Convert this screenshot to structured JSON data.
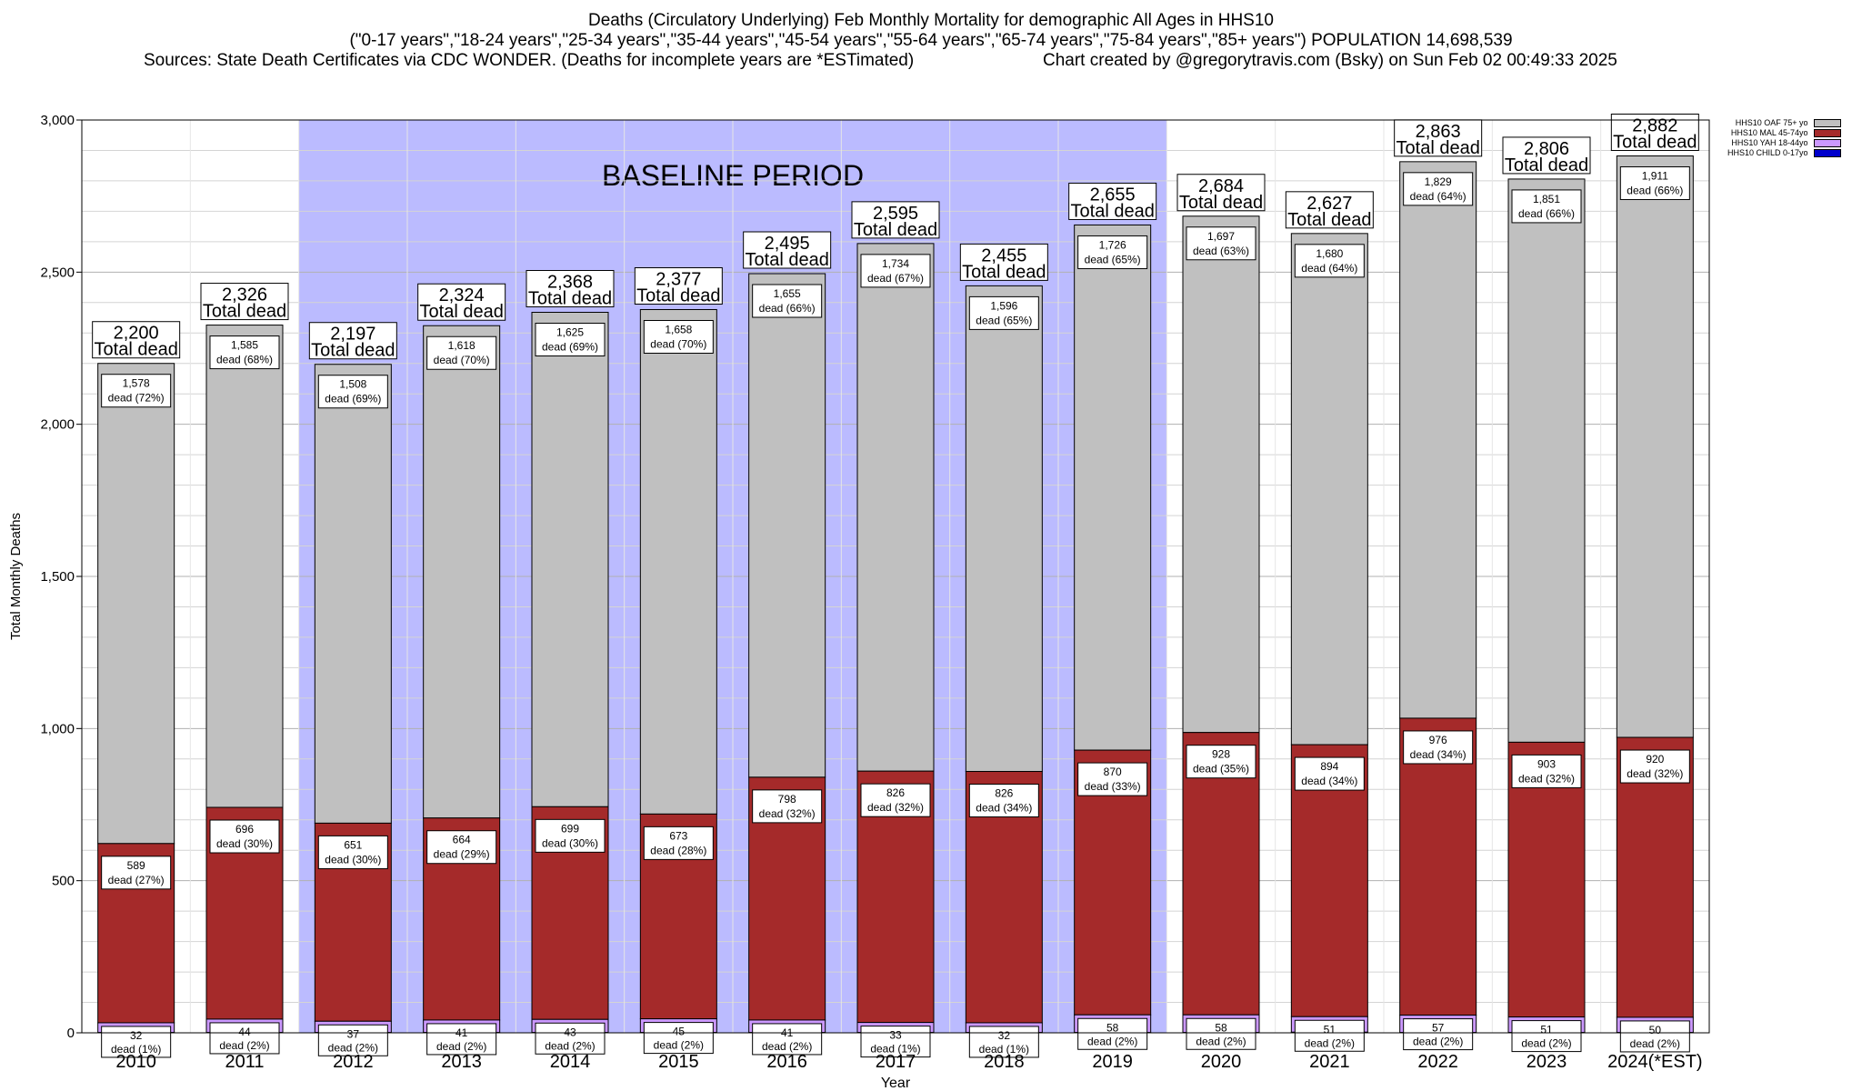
{
  "title": {
    "line1": "Deaths (Circulatory Underlying) Feb Monthly Mortality for demographic All Ages in HHS10",
    "line2": "(\"0-17 years\",\"18-24 years\",\"25-34 years\",\"35-44 years\",\"45-54 years\",\"55-64 years\",\"65-74 years\",\"75-84 years\",\"85+ years\") POPULATION 14,698,539",
    "line3_left": "Sources: State Death Certificates via CDC WONDER. (Deaths for incomplete years are *ESTimated)",
    "line3_right": "Chart created by @gregorytravis.com (Bsky) on Sun Feb 02 00:49:33 2025"
  },
  "chart_data": {
    "type": "bar",
    "stacked": true,
    "xlabel": "Year",
    "ylabel": "Total Monthly Deaths",
    "ylim": [
      0,
      3000
    ],
    "yticks": [
      0,
      500,
      1000,
      1500,
      2000,
      2500,
      3000
    ],
    "ytick_labels": [
      "0",
      "500",
      "1,000",
      "1,500",
      "2,000",
      "2,500",
      "3,000"
    ],
    "grid": true,
    "legend_position": "top-right",
    "categories": [
      "2010",
      "2011",
      "2012",
      "2013",
      "2014",
      "2015",
      "2016",
      "2017",
      "2018",
      "2019",
      "2020",
      "2021",
      "2022",
      "2023",
      "2024(*EST)"
    ],
    "baseline_label": "BASELINE PERIOD",
    "baseline_range": [
      "2012",
      "2019"
    ],
    "series": [
      {
        "name": "HHS10 CHILD 0-17yo",
        "color": "#0000cc",
        "values": [
          1,
          1,
          1,
          1,
          1,
          1,
          1,
          1,
          1,
          1,
          1,
          2,
          1,
          1,
          1
        ]
      },
      {
        "name": "HHS10 YAH 18-44yo",
        "color": "#cc99ff",
        "values": [
          32,
          44,
          37,
          41,
          43,
          45,
          41,
          33,
          32,
          58,
          58,
          51,
          57,
          51,
          50
        ],
        "pct": [
          "1%",
          "2%",
          "2%",
          "2%",
          "2%",
          "2%",
          "2%",
          "1%",
          "1%",
          "2%",
          "2%",
          "2%",
          "2%",
          "2%",
          "2%"
        ]
      },
      {
        "name": "HHS10 MAL 45-74yo",
        "color": "#a52a2a",
        "values": [
          589,
          696,
          651,
          664,
          699,
          673,
          798,
          826,
          826,
          870,
          928,
          894,
          976,
          903,
          920
        ],
        "pct": [
          "27%",
          "30%",
          "30%",
          "29%",
          "30%",
          "28%",
          "32%",
          "32%",
          "34%",
          "33%",
          "35%",
          "34%",
          "34%",
          "32%",
          "32%"
        ]
      },
      {
        "name": "HHS10 OAF 75+ yo",
        "color": "#c0c0c0",
        "values": [
          1578,
          1585,
          1508,
          1618,
          1625,
          1658,
          1655,
          1734,
          1596,
          1726,
          1697,
          1680,
          1829,
          1851,
          1911
        ],
        "pct": [
          "72%",
          "68%",
          "69%",
          "70%",
          "69%",
          "70%",
          "66%",
          "67%",
          "65%",
          "65%",
          "63%",
          "64%",
          "64%",
          "66%",
          "66%"
        ]
      }
    ],
    "totals": [
      2200,
      2326,
      2197,
      2324,
      2368,
      2377,
      2495,
      2595,
      2455,
      2655,
      2684,
      2627,
      2863,
      2806,
      2882
    ],
    "total_labels": [
      "2,200",
      "2,326",
      "2,197",
      "2,324",
      "2,368",
      "2,377",
      "2,495",
      "2,595",
      "2,455",
      "2,655",
      "2,684",
      "2,627",
      "2,863",
      "2,806",
      "2,882"
    ],
    "segment_labels": {
      "oaf": [
        "1,578",
        "1,585",
        "1,508",
        "1,618",
        "1,625",
        "1,658",
        "1,655",
        "1,734",
        "1,596",
        "1,726",
        "1,697",
        "1,680",
        "1,829",
        "1,851",
        "1,911"
      ],
      "mal": [
        "589",
        "696",
        "651",
        "664",
        "699",
        "673",
        "798",
        "826",
        "826",
        "870",
        "928",
        "894",
        "976",
        "903",
        "920"
      ],
      "yah": [
        "32",
        "44",
        "37",
        "41",
        "43",
        "45",
        "41",
        "33",
        "32",
        "58",
        "58",
        "51",
        "57",
        "51",
        "50"
      ]
    },
    "total_suffix": "Total dead",
    "dead_word": "dead"
  },
  "legend_order": [
    "HHS10 OAF 75+ yo",
    "HHS10 MAL 45-74yo",
    "HHS10 YAH 18-44yo",
    "HHS10 CHILD 0-17yo"
  ]
}
